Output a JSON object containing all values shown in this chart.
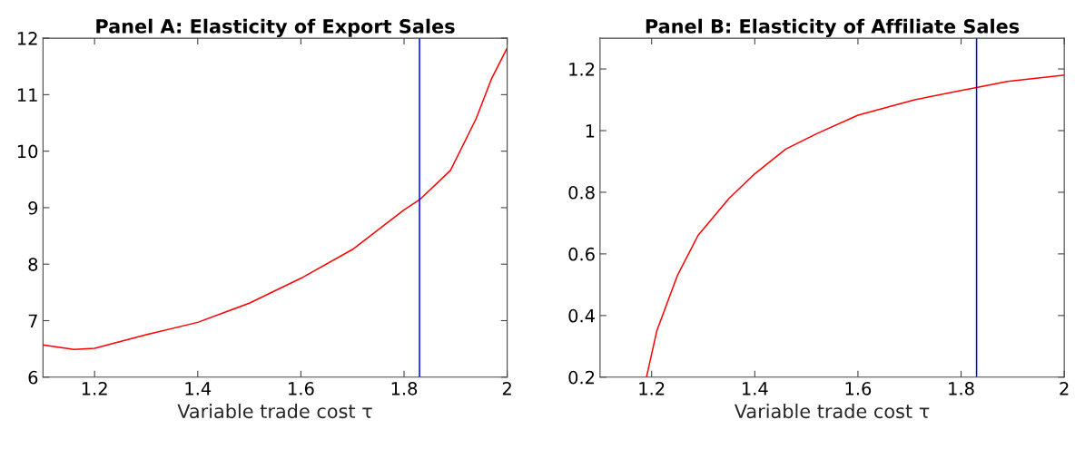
{
  "chart_data": [
    {
      "type": "line",
      "title": "Panel A: Elasticity of Export Sales",
      "xlabel": "Variable trade cost τ",
      "x": [
        1.1,
        1.16,
        1.2,
        1.3,
        1.4,
        1.5,
        1.6,
        1.7,
        1.8,
        1.83,
        1.89,
        1.94,
        1.97,
        2.0
      ],
      "series": [
        {
          "color": "#ff0000",
          "values": [
            6.57,
            6.49,
            6.51,
            6.75,
            6.97,
            7.31,
            7.75,
            8.26,
            8.96,
            9.14,
            9.66,
            10.58,
            11.29,
            11.83
          ]
        }
      ],
      "xlim": [
        1.1,
        2
      ],
      "xticks": [
        1.2,
        1.4,
        1.6,
        1.8,
        2
      ],
      "ylim": [
        6,
        12
      ],
      "yticks": [
        6,
        7,
        8,
        9,
        10,
        11,
        12
      ],
      "ref_lines": [
        {
          "axis": "x",
          "value": 1.83,
          "color": "#0000ff"
        }
      ],
      "grid": false,
      "legend": false
    },
    {
      "type": "line",
      "title": "Panel B: Elasticity of Affiliate Sales",
      "xlabel": "Variable trade cost τ",
      "x": [
        1.19,
        1.21,
        1.25,
        1.29,
        1.35,
        1.4,
        1.46,
        1.52,
        1.6,
        1.71,
        1.8,
        1.83,
        1.89,
        2.0
      ],
      "series": [
        {
          "color": "#ff0000",
          "values": [
            0.2,
            0.35,
            0.53,
            0.66,
            0.78,
            0.86,
            0.94,
            0.99,
            1.05,
            1.1,
            1.13,
            1.14,
            1.16,
            1.18
          ]
        }
      ],
      "xlim": [
        1.1,
        2
      ],
      "xticks": [
        1.2,
        1.4,
        1.6,
        1.8,
        2
      ],
      "ylim": [
        0.2,
        1.3
      ],
      "yticks": [
        0.2,
        0.4,
        0.6,
        0.8,
        1,
        1.2
      ],
      "ref_lines": [
        {
          "axis": "x",
          "value": 1.83,
          "color": "#0000ff"
        }
      ],
      "grid": false,
      "legend": false
    }
  ]
}
